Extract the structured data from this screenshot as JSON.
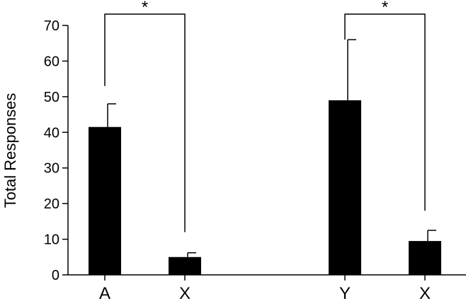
{
  "chart_data": {
    "type": "bar",
    "title": "",
    "xlabel": "",
    "ylabel": "Total Responses",
    "ylim": [
      0,
      70
    ],
    "yticks": [
      0,
      10,
      20,
      30,
      40,
      50,
      60,
      70
    ],
    "grid": false,
    "legend": "none",
    "bar_color": "#000000",
    "categories": [
      "A",
      "X",
      "Y",
      "X"
    ],
    "values": [
      41.5,
      5,
      49,
      9.5
    ],
    "errors": [
      6.5,
      1.2,
      17,
      3
    ],
    "comparisons": [
      {
        "from": 0,
        "to": 1,
        "label": "*",
        "left_base": 53,
        "right_base": 12
      },
      {
        "from": 2,
        "to": 3,
        "label": "*",
        "left_base": 66,
        "right_base": 18
      }
    ]
  }
}
